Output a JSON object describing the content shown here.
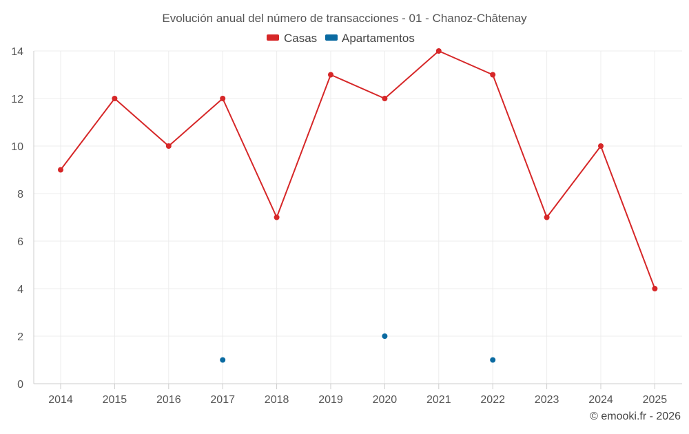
{
  "chart_data": {
    "type": "line",
    "title": "Evolución anual del número de transacciones - 01 - Chanoz-Châtenay",
    "xlabel": "",
    "ylabel": "",
    "categories": [
      "2014",
      "2015",
      "2016",
      "2017",
      "2018",
      "2019",
      "2020",
      "2021",
      "2022",
      "2023",
      "2024",
      "2025"
    ],
    "yticks": [
      "0",
      "2",
      "4",
      "6",
      "8",
      "10",
      "12",
      "14"
    ],
    "ylim": [
      0,
      14
    ],
    "grid": true,
    "legend_position": "top-center",
    "series": [
      {
        "name": "Casas",
        "color": "#d62728",
        "style": "line-markers",
        "values": [
          9,
          12,
          10,
          12,
          7,
          13,
          12,
          14,
          13,
          7,
          10,
          4
        ]
      },
      {
        "name": "Apartamentos",
        "color": "#0a6aa1",
        "style": "markers",
        "values": [
          null,
          null,
          null,
          1,
          null,
          null,
          2,
          null,
          1,
          null,
          null,
          null
        ]
      }
    ]
  },
  "credit": "© emooki.fr - 2026"
}
